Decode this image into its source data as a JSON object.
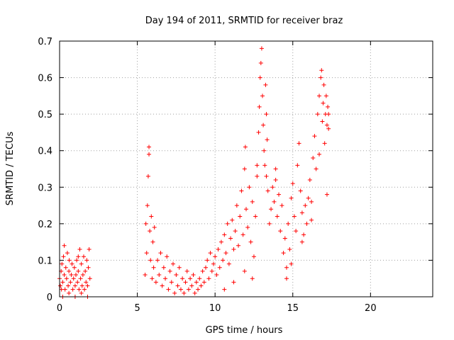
{
  "chart_data": {
    "type": "scatter",
    "title": "Day 194 of 2011, SRMTID for receiver braz",
    "xlabel": "GPS time / hours",
    "ylabel": "SRMTID / TECUs",
    "xlim": [
      0,
      24
    ],
    "ylim": [
      0,
      0.7
    ],
    "x_ticks": [
      0,
      5,
      10,
      15,
      20
    ],
    "x_tick_labels": [
      "0",
      "5",
      "10",
      "15",
      "20"
    ],
    "y_ticks": [
      0,
      0.1,
      0.2,
      0.3,
      0.4,
      0.5,
      0.6,
      0.7
    ],
    "y_tick_labels": [
      "0",
      "0.1",
      "0.2",
      "0.3",
      "0.4",
      "0.5",
      "0.6",
      "0.7"
    ],
    "grid": true,
    "marker": "+",
    "color": "#ff0000",
    "series": [
      {
        "points": [
          [
            0.0,
            0.05
          ],
          [
            0.05,
            0.03
          ],
          [
            0.1,
            0.07
          ],
          [
            0.12,
            0.02
          ],
          [
            0.15,
            0.09
          ],
          [
            0.2,
            0.04
          ],
          [
            0.25,
            0.11
          ],
          [
            0.3,
            0.06
          ],
          [
            0.3,
            0.14
          ],
          [
            0.35,
            0.02
          ],
          [
            0.4,
            0.08
          ],
          [
            0.45,
            0.05
          ],
          [
            0.5,
            0.12
          ],
          [
            0.55,
            0.03
          ],
          [
            0.6,
            0.07
          ],
          [
            0.62,
            0.1
          ],
          [
            0.7,
            0.04
          ],
          [
            0.75,
            0.06
          ],
          [
            0.8,
            0.09
          ],
          [
            0.85,
            0.02
          ],
          [
            0.9,
            0.05
          ],
          [
            0.95,
            0.08
          ],
          [
            1.0,
            0.03
          ],
          [
            1.05,
            0.06
          ],
          [
            1.1,
            0.1
          ],
          [
            1.15,
            0.04
          ],
          [
            1.2,
            0.07
          ],
          [
            1.25,
            0.02
          ],
          [
            1.3,
            0.13
          ],
          [
            1.35,
            0.05
          ],
          [
            1.4,
            0.09
          ],
          [
            1.45,
            0.03
          ],
          [
            1.5,
            0.06
          ],
          [
            1.55,
            0.11
          ],
          [
            1.6,
            0.02
          ],
          [
            1.65,
            0.07
          ],
          [
            1.7,
            0.04
          ],
          [
            1.75,
            0.1
          ],
          [
            1.8,
            0.03
          ],
          [
            1.85,
            0.08
          ],
          [
            1.9,
            0.13
          ],
          [
            1.95,
            0.05
          ],
          [
            0.2,
            0.0
          ],
          [
            0.6,
            0.01
          ],
          [
            1.0,
            0.0
          ],
          [
            1.4,
            0.01
          ],
          [
            1.8,
            0.0
          ],
          [
            1.2,
            0.11
          ],
          [
            5.5,
            0.06
          ],
          [
            5.55,
            0.2
          ],
          [
            5.6,
            0.12
          ],
          [
            5.65,
            0.25
          ],
          [
            5.7,
            0.33
          ],
          [
            5.75,
            0.41
          ],
          [
            5.75,
            0.39
          ],
          [
            5.8,
            0.18
          ],
          [
            5.85,
            0.1
          ],
          [
            5.9,
            0.22
          ],
          [
            5.95,
            0.05
          ],
          [
            6.0,
            0.15
          ],
          [
            6.05,
            0.08
          ],
          [
            6.1,
            0.19
          ],
          [
            6.2,
            0.04
          ],
          [
            6.3,
            0.1
          ],
          [
            6.4,
            0.06
          ],
          [
            6.5,
            0.12
          ],
          [
            6.6,
            0.03
          ],
          [
            6.7,
            0.08
          ],
          [
            6.8,
            0.05
          ],
          [
            6.9,
            0.11
          ],
          [
            7.0,
            0.02
          ],
          [
            7.1,
            0.07
          ],
          [
            7.2,
            0.04
          ],
          [
            7.3,
            0.09
          ],
          [
            7.4,
            0.01
          ],
          [
            7.5,
            0.06
          ],
          [
            7.6,
            0.03
          ],
          [
            7.7,
            0.08
          ],
          [
            7.8,
            0.02
          ],
          [
            7.9,
            0.05
          ],
          [
            8.0,
            0.01
          ],
          [
            8.1,
            0.04
          ],
          [
            8.2,
            0.07
          ],
          [
            8.3,
            0.02
          ],
          [
            8.4,
            0.05
          ],
          [
            8.5,
            0.03
          ],
          [
            8.6,
            0.06
          ],
          [
            8.7,
            0.01
          ],
          [
            8.8,
            0.04
          ],
          [
            8.9,
            0.02
          ],
          [
            9.0,
            0.05
          ],
          [
            9.1,
            0.03
          ],
          [
            9.2,
            0.07
          ],
          [
            9.3,
            0.04
          ],
          [
            9.4,
            0.08
          ],
          [
            9.5,
            0.1
          ],
          [
            9.6,
            0.05
          ],
          [
            9.7,
            0.12
          ],
          [
            9.8,
            0.07
          ],
          [
            9.9,
            0.09
          ],
          [
            10.0,
            0.11
          ],
          [
            10.1,
            0.06
          ],
          [
            10.2,
            0.13
          ],
          [
            10.3,
            0.08
          ],
          [
            10.4,
            0.15
          ],
          [
            10.5,
            0.1
          ],
          [
            10.6,
            0.17
          ],
          [
            10.7,
            0.12
          ],
          [
            10.8,
            0.2
          ],
          [
            10.9,
            0.09
          ],
          [
            11.0,
            0.16
          ],
          [
            11.1,
            0.21
          ],
          [
            11.2,
            0.13
          ],
          [
            11.3,
            0.18
          ],
          [
            11.4,
            0.25
          ],
          [
            11.5,
            0.14
          ],
          [
            11.6,
            0.22
          ],
          [
            11.7,
            0.29
          ],
          [
            11.8,
            0.17
          ],
          [
            11.9,
            0.35
          ],
          [
            11.95,
            0.41
          ],
          [
            12.0,
            0.24
          ],
          [
            12.1,
            0.19
          ],
          [
            12.2,
            0.3
          ],
          [
            12.3,
            0.15
          ],
          [
            12.4,
            0.26
          ],
          [
            12.5,
            0.11
          ],
          [
            12.6,
            0.22
          ],
          [
            12.7,
            0.33
          ],
          [
            12.8,
            0.45
          ],
          [
            12.85,
            0.52
          ],
          [
            12.9,
            0.6
          ],
          [
            12.95,
            0.64
          ],
          [
            13.0,
            0.68
          ],
          [
            13.05,
            0.55
          ],
          [
            13.1,
            0.47
          ],
          [
            13.15,
            0.4
          ],
          [
            13.2,
            0.36
          ],
          [
            13.25,
            0.58
          ],
          [
            13.3,
            0.5
          ],
          [
            13.35,
            0.43
          ],
          [
            13.4,
            0.29
          ],
          [
            13.5,
            0.2
          ],
          [
            13.6,
            0.24
          ],
          [
            13.7,
            0.3
          ],
          [
            13.8,
            0.26
          ],
          [
            13.9,
            0.35
          ],
          [
            14.0,
            0.22
          ],
          [
            14.1,
            0.28
          ],
          [
            14.2,
            0.18
          ],
          [
            14.3,
            0.25
          ],
          [
            14.4,
            0.12
          ],
          [
            14.5,
            0.16
          ],
          [
            14.6,
            0.08
          ],
          [
            14.7,
            0.2
          ],
          [
            14.8,
            0.13
          ],
          [
            14.9,
            0.27
          ],
          [
            15.0,
            0.31
          ],
          [
            15.1,
            0.22
          ],
          [
            15.2,
            0.18
          ],
          [
            15.3,
            0.36
          ],
          [
            15.4,
            0.42
          ],
          [
            15.5,
            0.29
          ],
          [
            15.6,
            0.23
          ],
          [
            15.7,
            0.17
          ],
          [
            15.8,
            0.25
          ],
          [
            15.9,
            0.2
          ],
          [
            16.0,
            0.27
          ],
          [
            16.1,
            0.32
          ],
          [
            16.2,
            0.26
          ],
          [
            16.3,
            0.38
          ],
          [
            16.4,
            0.44
          ],
          [
            16.5,
            0.35
          ],
          [
            16.6,
            0.5
          ],
          [
            16.7,
            0.55
          ],
          [
            16.8,
            0.6
          ],
          [
            16.85,
            0.62
          ],
          [
            16.9,
            0.48
          ],
          [
            16.95,
            0.53
          ],
          [
            17.0,
            0.58
          ],
          [
            17.05,
            0.42
          ],
          [
            17.1,
            0.5
          ],
          [
            17.15,
            0.55
          ],
          [
            17.2,
            0.47
          ],
          [
            17.25,
            0.52
          ],
          [
            17.3,
            0.5
          ],
          [
            17.3,
            0.46
          ],
          [
            17.2,
            0.28
          ],
          [
            16.7,
            0.39
          ],
          [
            16.2,
            0.21
          ],
          [
            15.6,
            0.15
          ],
          [
            14.9,
            0.09
          ],
          [
            14.6,
            0.05
          ],
          [
            13.9,
            0.32
          ],
          [
            13.3,
            0.33
          ],
          [
            12.7,
            0.36
          ],
          [
            12.4,
            0.05
          ],
          [
            11.9,
            0.07
          ],
          [
            11.2,
            0.04
          ],
          [
            10.6,
            0.02
          ]
        ]
      }
    ]
  }
}
